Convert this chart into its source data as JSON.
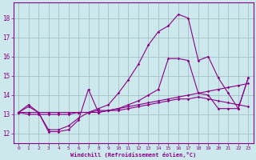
{
  "title": "",
  "xlabel": "Windchill (Refroidissement éolien,°C)",
  "ylabel": "",
  "bg_color": "#cce8ec",
  "line_color": "#880088",
  "grid_color": "#99bbbb",
  "text_color": "#880088",
  "xlim": [
    -0.5,
    23.5
  ],
  "ylim": [
    11.5,
    18.8
  ],
  "yticks": [
    12,
    13,
    14,
    15,
    16,
    17,
    18
  ],
  "xticks": [
    0,
    1,
    2,
    3,
    4,
    5,
    6,
    7,
    8,
    9,
    10,
    11,
    12,
    13,
    14,
    15,
    16,
    17,
    18,
    19,
    20,
    21,
    22,
    23
  ],
  "series": [
    [
      13.1,
      13.5,
      13.1,
      12.1,
      12.1,
      12.2,
      12.7,
      14.3,
      13.1,
      13.2,
      13.3,
      13.5,
      13.7,
      14.0,
      14.3,
      15.9,
      15.9,
      15.8,
      14.1,
      14.0,
      13.3,
      13.3,
      13.3,
      14.9
    ],
    [
      13.1,
      13.1,
      13.1,
      13.1,
      13.1,
      13.1,
      13.1,
      13.1,
      13.2,
      13.2,
      13.3,
      13.4,
      13.5,
      13.6,
      13.7,
      13.8,
      13.9,
      14.0,
      14.1,
      14.2,
      14.3,
      14.4,
      14.5,
      14.6
    ],
    [
      13.1,
      13.0,
      13.0,
      13.0,
      13.0,
      13.0,
      13.1,
      13.1,
      13.1,
      13.2,
      13.2,
      13.3,
      13.4,
      13.5,
      13.6,
      13.7,
      13.8,
      13.8,
      13.9,
      13.8,
      13.7,
      13.6,
      13.5,
      13.4
    ],
    [
      13.1,
      13.4,
      13.1,
      12.2,
      12.2,
      12.4,
      12.8,
      13.1,
      13.3,
      13.5,
      14.1,
      14.8,
      15.6,
      16.6,
      17.3,
      17.6,
      18.2,
      18.0,
      15.8,
      16.0,
      14.9,
      14.1,
      13.3,
      14.9
    ]
  ]
}
